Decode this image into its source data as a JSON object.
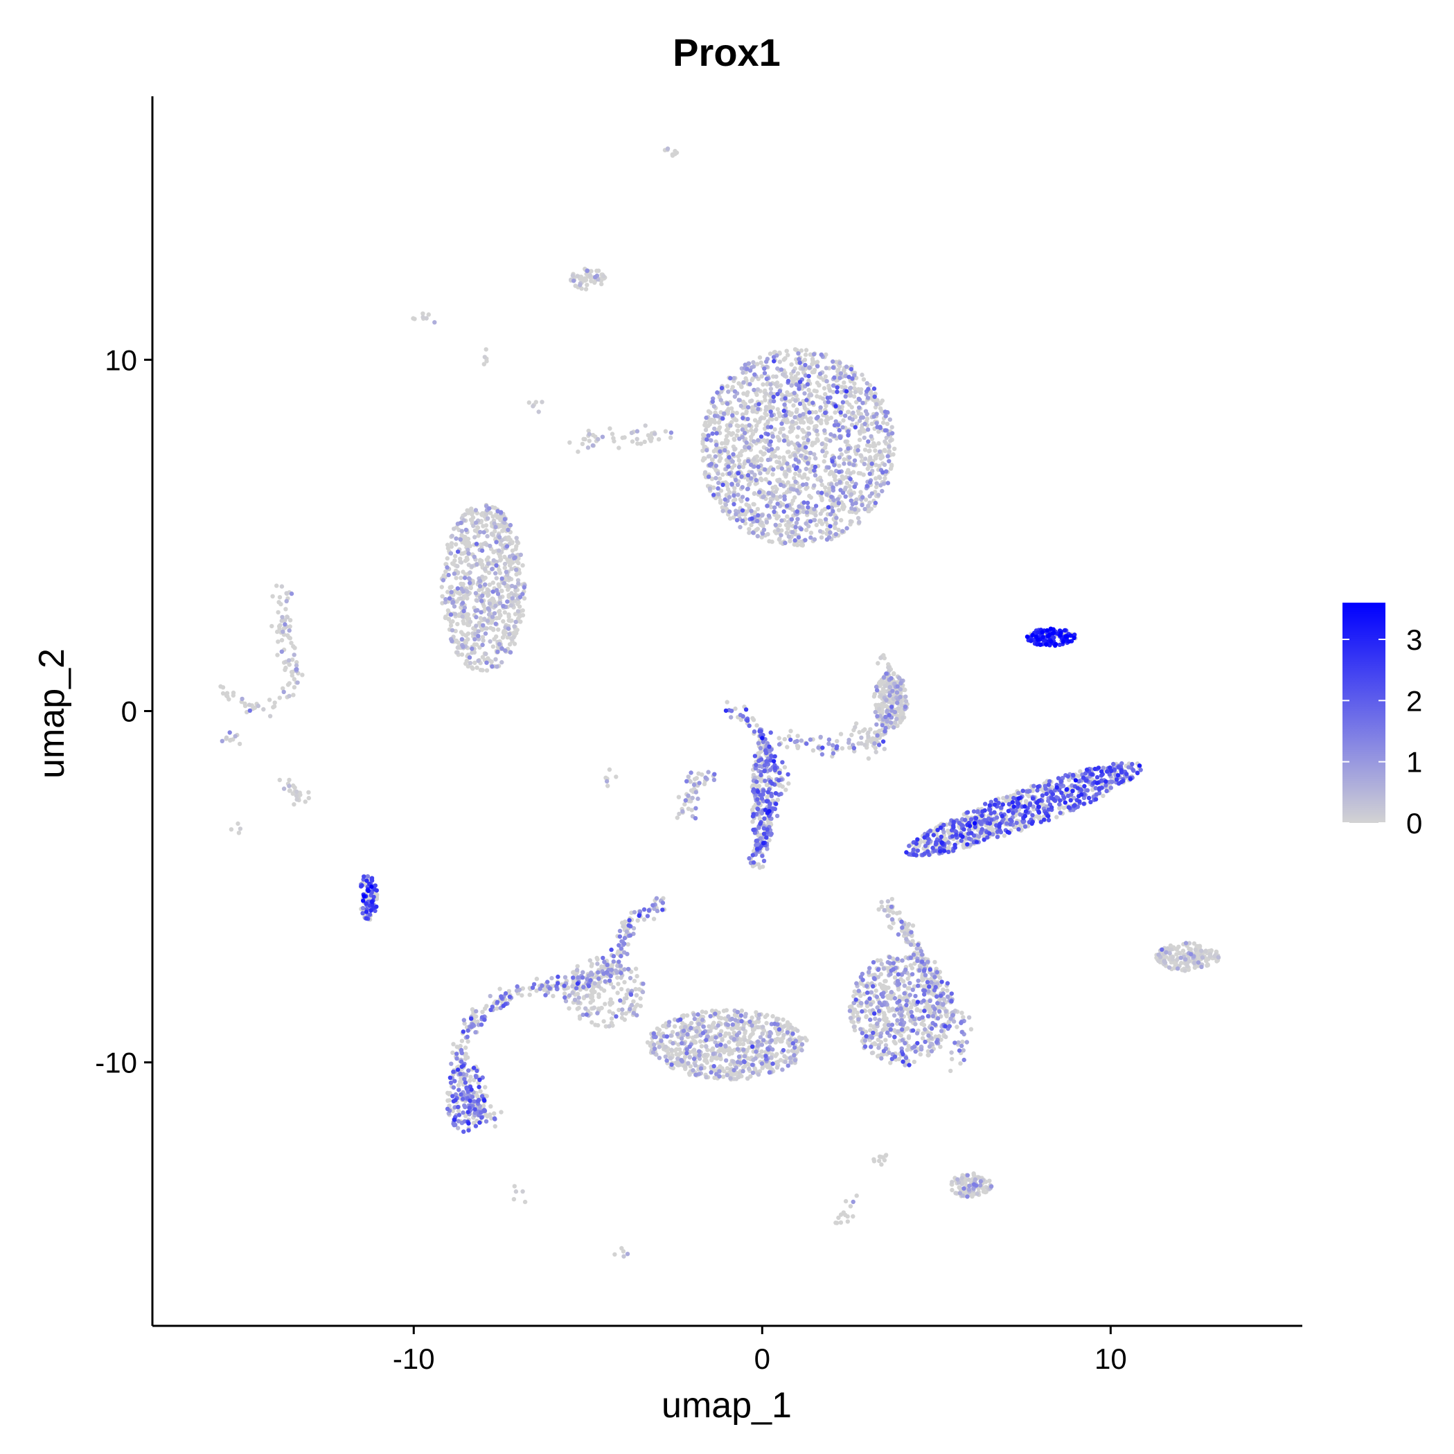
{
  "chart_data": {
    "type": "scatter",
    "title": "Prox1",
    "xlabel": "umap_1",
    "ylabel": "umap_2",
    "xlim": [
      -17.5,
      15.5
    ],
    "ylim": [
      -17.5,
      17.5
    ],
    "x_ticks": [
      -10,
      0,
      10
    ],
    "y_ticks": [
      10,
      0,
      -10
    ],
    "x_tick_labels": [
      "-10",
      "0",
      "10"
    ],
    "y_tick_labels": [
      "10",
      "0",
      "-10"
    ],
    "grid": false,
    "legend": {
      "position": "right",
      "title": "",
      "scale_min": 0,
      "scale_max": 3.6,
      "breaks": [
        0,
        1,
        2,
        3
      ],
      "break_labels": [
        "0",
        "1",
        "2",
        "3"
      ]
    },
    "colors": {
      "low": "#d3d3d3",
      "high": "#0000ff"
    },
    "clusters": [
      {
        "cx": 1.0,
        "cy": 7.5,
        "rx": 2.8,
        "ry": 2.8,
        "n": 1700,
        "expr_mean": 0.7
      },
      {
        "cx": -8.0,
        "cy": 3.5,
        "rx": 1.2,
        "ry": 2.4,
        "n": 750,
        "expr_mean": 0.5
      },
      {
        "cx": 8.3,
        "cy": 2.1,
        "rx": 0.7,
        "ry": 0.25,
        "n": 130,
        "expr_mean": 3.0
      },
      {
        "cx": 7.5,
        "cy": -2.8,
        "rx": 3.6,
        "ry": 0.55,
        "angle": 20,
        "n": 800,
        "expr_mean": 1.8
      },
      {
        "cx": 3.7,
        "cy": 0.3,
        "rx": 0.5,
        "ry": 0.8,
        "n": 200,
        "expr_mean": 0.4
      },
      {
        "cx": 12.2,
        "cy": -7.0,
        "rx": 0.9,
        "ry": 0.4,
        "n": 180,
        "expr_mean": 0.2
      },
      {
        "cx": 6.0,
        "cy": -13.5,
        "rx": 0.6,
        "ry": 0.35,
        "n": 110,
        "expr_mean": 0.5
      },
      {
        "cx": -11.3,
        "cy": -5.3,
        "rx": 0.25,
        "ry": 0.7,
        "n": 90,
        "expr_mean": 2.4
      },
      {
        "cx": -5.0,
        "cy": 12.3,
        "rx": 0.5,
        "ry": 0.3,
        "n": 60,
        "expr_mean": 0.2
      },
      {
        "cx": -8.5,
        "cy": -11.0,
        "rx": 0.6,
        "ry": 1.0,
        "n": 160,
        "expr_mean": 1.6
      },
      {
        "cx": -4.5,
        "cy": -8.0,
        "rx": 1.2,
        "ry": 1.0,
        "n": 200,
        "expr_mean": 0.5
      },
      {
        "cx": -1.0,
        "cy": -9.5,
        "rx": 2.3,
        "ry": 1.0,
        "n": 700,
        "expr_mean": 0.6
      },
      {
        "cx": 4.0,
        "cy": -8.5,
        "rx": 1.5,
        "ry": 1.6,
        "n": 600,
        "expr_mean": 0.9
      },
      {
        "cx": 0.0,
        "cy": -2.5,
        "rx": 0.3,
        "ry": 1.8,
        "n": 200,
        "expr_mean": 1.6
      }
    ],
    "trails": [
      {
        "points": [
          [
            -0.9,
            0.0
          ],
          [
            -0.5,
            -0.2
          ],
          [
            0.2,
            -1.0
          ],
          [
            0.5,
            -2.0
          ],
          [
            0.0,
            -3.5
          ],
          [
            -0.3,
            -4.5
          ]
        ],
        "n": 160,
        "expr_mean": 1.6
      },
      {
        "points": [
          [
            0.5,
            -0.8
          ],
          [
            1.5,
            -1.0
          ],
          [
            2.8,
            -1.0
          ],
          [
            3.5,
            -0.5
          ]
        ],
        "n": 60,
        "expr_mean": 1.0
      },
      {
        "points": [
          [
            -1.4,
            -1.7
          ],
          [
            -2.0,
            -2.0
          ],
          [
            -2.2,
            -3.0
          ],
          [
            -2.1,
            -3.0
          ]
        ],
        "n": 50,
        "expr_mean": 0.6
      },
      {
        "points": [
          [
            -2.8,
            -5.4
          ],
          [
            -3.8,
            -6.0
          ],
          [
            -4.3,
            -7.5
          ],
          [
            -5.4,
            -7.8
          ],
          [
            -7.0,
            -7.9
          ],
          [
            -8.4,
            -8.9
          ],
          [
            -8.7,
            -10.0
          ],
          [
            -8.3,
            -11.3
          ],
          [
            -7.6,
            -11.6
          ]
        ],
        "n": 340,
        "expr_mean": 1.2
      },
      {
        "points": [
          [
            3.5,
            -5.5
          ],
          [
            4.3,
            -6.5
          ],
          [
            5.0,
            -8.0
          ],
          [
            5.8,
            -9.0
          ],
          [
            5.6,
            -10.0
          ]
        ],
        "n": 150,
        "expr_mean": 0.8
      },
      {
        "points": [
          [
            -5.4,
            7.6
          ],
          [
            -4.8,
            7.8
          ],
          [
            -3.5,
            7.8
          ],
          [
            -2.7,
            7.9
          ]
        ],
        "n": 45,
        "expr_mean": 0.3
      },
      {
        "points": [
          [
            -13.7,
            3.5
          ],
          [
            -13.7,
            2.5
          ],
          [
            -13.6,
            1.5
          ],
          [
            -13.3,
            1.0
          ],
          [
            -13.6,
            0.5
          ]
        ],
        "n": 75,
        "expr_mean": 0.3
      },
      {
        "points": [
          [
            -15.6,
            0.7
          ],
          [
            -15.0,
            0.3
          ],
          [
            -14.3,
            0.0
          ],
          [
            -13.8,
            0.5
          ]
        ],
        "n": 30,
        "expr_mean": 0.4
      },
      {
        "points": [
          [
            -13.8,
            -1.9
          ],
          [
            -13.2,
            -2.6
          ]
        ],
        "n": 25,
        "expr_mean": 0.1
      },
      {
        "points": [
          [
            3.4,
            1.5
          ],
          [
            3.8,
            0.8
          ],
          [
            3.5,
            -0.5
          ],
          [
            3.0,
            -1.2
          ]
        ],
        "n": 70,
        "expr_mean": 0.5
      },
      {
        "points": [
          [
            3.4,
            -1.0
          ],
          [
            2.5,
            -0.5
          ]
        ],
        "n": 20,
        "expr_mean": 0.3
      },
      {
        "points": [
          [
            -2.6,
            16.0
          ],
          [
            -2.5,
            15.9
          ]
        ],
        "n": 8,
        "expr_mean": 0.1
      },
      {
        "points": [
          [
            -9.7,
            11.3
          ],
          [
            -9.6,
            11.2
          ]
        ],
        "n": 8,
        "expr_mean": 0.1
      },
      {
        "points": [
          [
            -8.0,
            10.1
          ],
          [
            -7.9,
            10.0
          ]
        ],
        "n": 5,
        "expr_mean": 0.1
      },
      {
        "points": [
          [
            -6.5,
            8.8
          ],
          [
            -6.3,
            8.6
          ]
        ],
        "n": 6,
        "expr_mean": 0.1
      },
      {
        "points": [
          [
            -15.4,
            -1.0
          ],
          [
            -15.2,
            -0.6
          ]
        ],
        "n": 10,
        "expr_mean": 0.2
      },
      {
        "points": [
          [
            -15.1,
            -3.4
          ],
          [
            -15.1,
            -3.3
          ]
        ],
        "n": 4,
        "expr_mean": 0.1
      },
      {
        "points": [
          [
            -4.4,
            -2.0
          ],
          [
            -4.2,
            -1.8
          ]
        ],
        "n": 6,
        "expr_mean": 0.6
      },
      {
        "points": [
          [
            3.6,
            -12.6
          ],
          [
            3.2,
            -12.9
          ]
        ],
        "n": 10,
        "expr_mean": 0.5
      },
      {
        "points": [
          [
            2.7,
            -14.0
          ],
          [
            2.1,
            -14.5
          ]
        ],
        "n": 14,
        "expr_mean": 0.5
      },
      {
        "points": [
          [
            -7.1,
            -13.8
          ],
          [
            -7.0,
            -13.7
          ]
        ],
        "n": 5,
        "expr_mean": 0.1
      },
      {
        "points": [
          [
            -4.1,
            -15.5
          ],
          [
            -4.0,
            -15.4
          ]
        ],
        "n": 5,
        "expr_mean": 0.1
      }
    ]
  }
}
